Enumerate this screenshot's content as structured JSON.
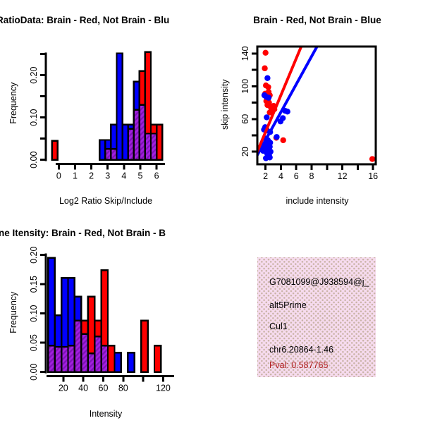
{
  "colors": {
    "red": "#FF0000",
    "blue": "#0000FF",
    "overlap_base": "#A31FE0",
    "overlap_stripe": "#7D13B5",
    "black": "#000000",
    "darkred": "#B22222",
    "info_bg": "#F6DBEE",
    "info_dots": "#C9B3A6",
    "page_bg": "#FFFFFF"
  },
  "chart_data": [
    {
      "type": "bar",
      "subtype": "overlaid-histogram",
      "title": "RatioData: Brain - Red, Not Brain - Blu",
      "xlabel": "Log2 Ratio Skip/Include",
      "ylabel": "Frequency",
      "xlim": [
        -0.75,
        6.6
      ],
      "ylim": [
        0,
        0.26
      ],
      "grid": false,
      "legend": "none",
      "xticks": [
        {
          "v": 0,
          "label": "0"
        },
        {
          "v": 1,
          "label": "1"
        },
        {
          "v": 2,
          "label": "2"
        },
        {
          "v": 3,
          "label": "3"
        },
        {
          "v": 4,
          "label": "4"
        },
        {
          "v": 5,
          "label": "5"
        },
        {
          "v": 6,
          "label": "6"
        }
      ],
      "yticks": [
        {
          "v": 0,
          "label": "0.00"
        },
        {
          "v": 0.05,
          "label": ""
        },
        {
          "v": 0.1,
          "label": "0.10"
        },
        {
          "v": 0.15,
          "label": ""
        },
        {
          "v": 0.2,
          "label": "0.20"
        },
        {
          "v": 0.25,
          "label": ""
        }
      ],
      "bars": [
        {
          "x0": -0.42,
          "x1": -0.07,
          "h": 0.045,
          "color": "red"
        },
        {
          "x0": 2.5,
          "x1": 2.85,
          "h": 0.047,
          "color": "blue"
        },
        {
          "x0": 2.85,
          "x1": 3.2,
          "h": 0.047,
          "color": "blue",
          "overlap": 0.026
        },
        {
          "x0": 3.2,
          "x1": 3.55,
          "h": 0.083,
          "color": "blue",
          "overlap": 0.026
        },
        {
          "x0": 3.55,
          "x1": 3.9,
          "h": 0.252,
          "color": "blue"
        },
        {
          "x0": 3.9,
          "x1": 4.25,
          "h": 0.083,
          "color": "blue"
        },
        {
          "x0": 4.25,
          "x1": 4.6,
          "h": 0.083,
          "color": "blue",
          "overlap": 0.073
        },
        {
          "x0": 4.6,
          "x1": 4.95,
          "h": 0.185,
          "color": "blue",
          "overlap": 0.118
        },
        {
          "x0": 4.95,
          "x1": 5.3,
          "h": 0.21,
          "color": "red",
          "overlap": 0.13
        },
        {
          "x0": 5.3,
          "x1": 5.65,
          "h": 0.255,
          "color": "red",
          "overlap": 0.062
        },
        {
          "x0": 5.65,
          "x1": 6.0,
          "h": 0.083,
          "color": "red",
          "overlap": 0.062
        },
        {
          "x0": 6.0,
          "x1": 6.35,
          "h": 0.083,
          "color": "red"
        }
      ]
    },
    {
      "type": "scatter",
      "title": "Brain - Red, Not Brain - Blue",
      "xlabel": "include intensity",
      "ylabel": "skip intensity",
      "xlim": [
        0.93,
        16.35
      ],
      "ylim": [
        4.6,
        148.6
      ],
      "grid": false,
      "legend": "none",
      "xticks": [
        {
          "v": 2,
          "label": "2"
        },
        {
          "v": 4,
          "label": "4"
        },
        {
          "v": 6,
          "label": "6"
        },
        {
          "v": 8,
          "label": "8"
        },
        {
          "v": 10,
          "label": ""
        },
        {
          "v": 12,
          "label": "12"
        },
        {
          "v": 14,
          "label": ""
        },
        {
          "v": 16,
          "label": "16"
        }
      ],
      "yticks": [
        {
          "v": 20,
          "label": "20"
        },
        {
          "v": 40,
          "label": ""
        },
        {
          "v": 60,
          "label": "60"
        },
        {
          "v": 80,
          "label": ""
        },
        {
          "v": 100,
          "label": "100"
        },
        {
          "v": 120,
          "label": ""
        },
        {
          "v": 140,
          "label": "140"
        }
      ],
      "series": [
        {
          "name": "Brain",
          "color": "red",
          "points": [
            [
              2.0,
              141
            ],
            [
              1.9,
              122
            ],
            [
              2.05,
              101
            ],
            [
              2.35,
              99
            ],
            [
              1.95,
              91
            ],
            [
              2.4,
              93
            ],
            [
              2.55,
              89
            ],
            [
              2.2,
              86
            ],
            [
              2.1,
              82
            ],
            [
              2.45,
              80
            ],
            [
              2.25,
              77
            ],
            [
              2.65,
              75
            ],
            [
              3.05,
              76
            ],
            [
              3.15,
              72
            ],
            [
              2.75,
              70
            ],
            [
              2.55,
              68
            ],
            [
              3.4,
              37
            ],
            [
              4.3,
              34
            ],
            [
              15.9,
              11
            ]
          ],
          "fit_line": {
            "x": [
              0.2,
              7.0
            ],
            "y": [
              3.6,
              156.6
            ]
          }
        },
        {
          "name": "Not Brain",
          "color": "blue",
          "points": [
            [
              2.25,
              110
            ],
            [
              1.85,
              89
            ],
            [
              2.1,
              87
            ],
            [
              2.4,
              86
            ],
            [
              2.15,
              62
            ],
            [
              4.55,
              70
            ],
            [
              4.85,
              69
            ],
            [
              4.25,
              61
            ],
            [
              3.95,
              57
            ],
            [
              1.95,
              50
            ],
            [
              1.8,
              47
            ],
            [
              2.2,
              46
            ],
            [
              2.6,
              44
            ],
            [
              3.45,
              38
            ],
            [
              2.0,
              36
            ],
            [
              2.3,
              34
            ],
            [
              2.6,
              31
            ],
            [
              1.9,
              29
            ],
            [
              2.25,
              28
            ],
            [
              2.55,
              26
            ],
            [
              1.8,
              25
            ],
            [
              2.1,
              23
            ],
            [
              2.45,
              22
            ],
            [
              2.0,
              21
            ],
            [
              2.65,
              20
            ],
            [
              2.2,
              18
            ],
            [
              2.45,
              16
            ],
            [
              2.05,
              12
            ],
            [
              2.55,
              13
            ],
            [
              1.7,
              21
            ]
          ],
          "fit_line": {
            "x": [
              0.2,
              9.2
            ],
            "y": [
              3.5,
              157.1
            ]
          }
        }
      ]
    },
    {
      "type": "bar",
      "subtype": "overlaid-histogram",
      "title": "ne Itensity: Brain - Red, Not Brain - B",
      "xlabel": "Intensity",
      "ylabel": "Frequency",
      "xlim": [
        3.2,
        122.5
      ],
      "ylim": [
        0,
        0.205
      ],
      "grid": false,
      "legend": "none",
      "xticks": [
        {
          "v": 20,
          "label": "20"
        },
        {
          "v": 40,
          "label": "40"
        },
        {
          "v": 60,
          "label": "60"
        },
        {
          "v": 80,
          "label": "80"
        },
        {
          "v": 100,
          "label": ""
        },
        {
          "v": 120,
          "label": "120"
        }
      ],
      "yticks": [
        {
          "v": 0,
          "label": "0.00"
        },
        {
          "v": 0.05,
          "label": "0.05"
        },
        {
          "v": 0.1,
          "label": "0.10"
        },
        {
          "v": 0.15,
          "label": "0.15"
        },
        {
          "v": 0.2,
          "label": "0.20"
        }
      ],
      "bars": [
        {
          "x0": 4.8,
          "x1": 11.45,
          "h": 0.195,
          "color": "blue",
          "overlap": 0.045
        },
        {
          "x0": 11.45,
          "x1": 18.1,
          "h": 0.097,
          "color": "blue",
          "overlap": 0.043
        },
        {
          "x0": 18.1,
          "x1": 24.75,
          "h": 0.161,
          "color": "blue",
          "overlap": 0.043
        },
        {
          "x0": 24.75,
          "x1": 31.4,
          "h": 0.161,
          "color": "blue",
          "overlap": 0.045
        },
        {
          "x0": 31.4,
          "x1": 38.05,
          "h": 0.129,
          "color": "blue",
          "overlap": 0.088
        },
        {
          "x0": 38.05,
          "x1": 44.7,
          "h": 0.088,
          "color": "red",
          "overlap": 0.065
        },
        {
          "x0": 44.7,
          "x1": 51.35,
          "h": 0.129,
          "color": "red",
          "overlap": 0.032
        },
        {
          "x0": 51.35,
          "x1": 58.0,
          "h": 0.088,
          "color": "red",
          "overlap": 0.061
        },
        {
          "x0": 58.0,
          "x1": 64.65,
          "h": 0.174,
          "color": "red",
          "overlap": 0.045
        },
        {
          "x0": 64.65,
          "x1": 71.3,
          "h": 0.045,
          "color": "red"
        },
        {
          "x0": 71.3,
          "x1": 77.95,
          "h": 0.033,
          "color": "blue"
        },
        {
          "x0": 84.6,
          "x1": 91.25,
          "h": 0.033,
          "color": "blue"
        },
        {
          "x0": 97.9,
          "x1": 104.55,
          "h": 0.088,
          "color": "red"
        },
        {
          "x0": 111.2,
          "x1": 117.85,
          "h": 0.045,
          "color": "red"
        }
      ]
    },
    {
      "type": "table",
      "subtype": "info-box",
      "lines": [
        {
          "text": "G7081099@J938594@j_",
          "color": "black"
        },
        {
          "text": "alt5Prime",
          "color": "black"
        },
        {
          "text": "Cul1",
          "color": "black"
        },
        {
          "text": "chr6.20864-1.46",
          "color": "black"
        },
        {
          "text": "Pval: 0.587765",
          "color": "darkred"
        }
      ]
    }
  ]
}
